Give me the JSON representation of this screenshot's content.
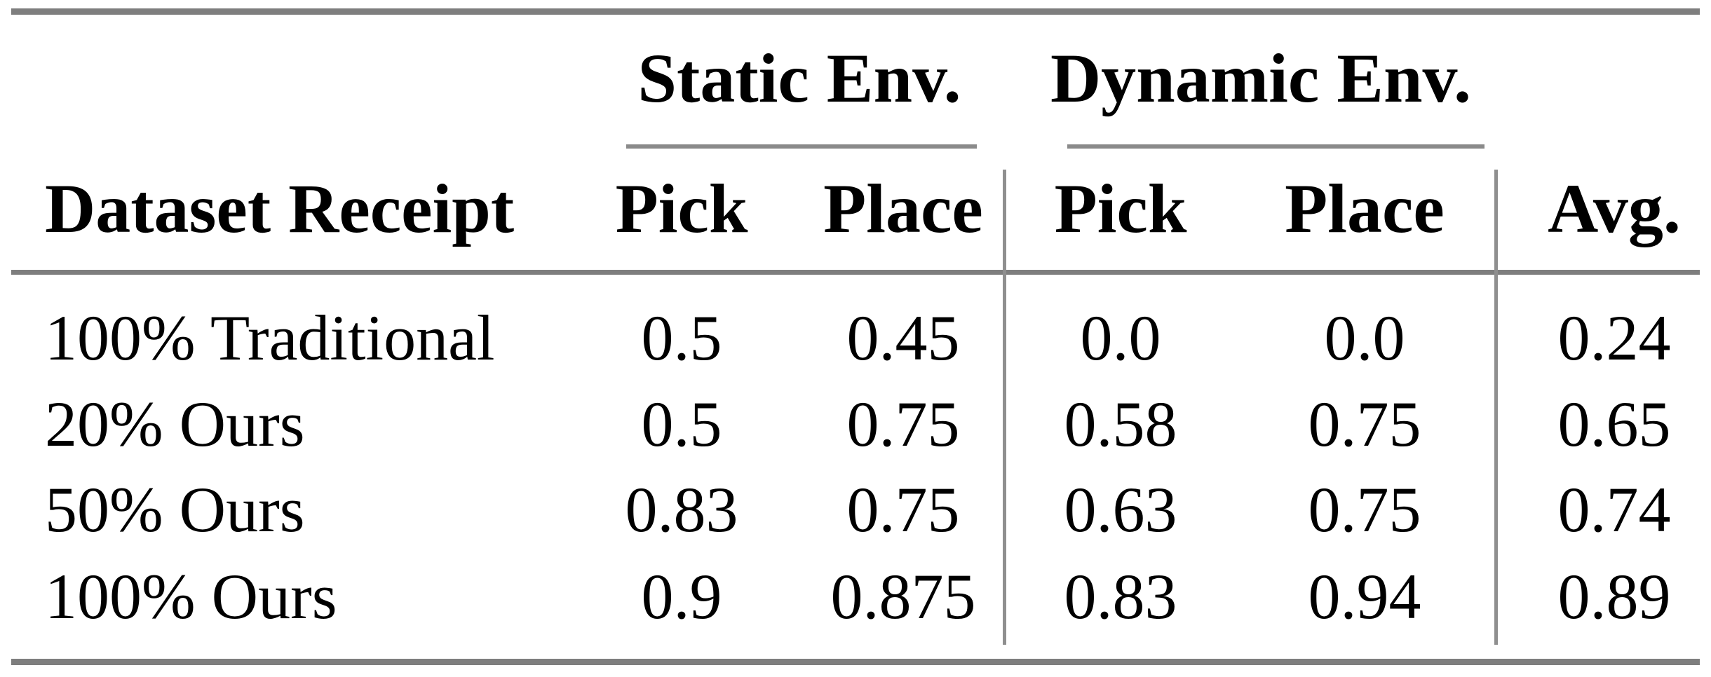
{
  "table": {
    "group_headers": {
      "static": "Static Env.",
      "dynamic": "Dynamic Env."
    },
    "column_headers": {
      "dataset": "Dataset Receipt",
      "static_pick": "Pick",
      "static_place": "Place",
      "dynamic_pick": "Pick",
      "dynamic_place": "Place",
      "avg": "Avg."
    },
    "rows": [
      {
        "label": "100% Traditional",
        "static_pick": "0.5",
        "static_place": "0.45",
        "dynamic_pick": "0.0",
        "dynamic_place": "0.0",
        "avg": "0.24"
      },
      {
        "label": "20% Ours",
        "static_pick": "0.5",
        "static_place": "0.75",
        "dynamic_pick": "0.58",
        "dynamic_place": "0.75",
        "avg": "0.65"
      },
      {
        "label": "50% Ours",
        "static_pick": "0.83",
        "static_place": "0.75",
        "dynamic_pick": "0.63",
        "dynamic_place": "0.75",
        "avg": "0.74"
      },
      {
        "label": "100% Ours",
        "static_pick": "0.9",
        "static_place": "0.875",
        "dynamic_pick": "0.83",
        "dynamic_place": "0.94",
        "avg": "0.89"
      }
    ],
    "colors": {
      "text": "#000000",
      "background": "#ffffff",
      "rule_horizontal": "#7e7e7e",
      "rule_group_underline": "#8a8a8a",
      "rule_vertical": "#8f8f8f"
    }
  }
}
